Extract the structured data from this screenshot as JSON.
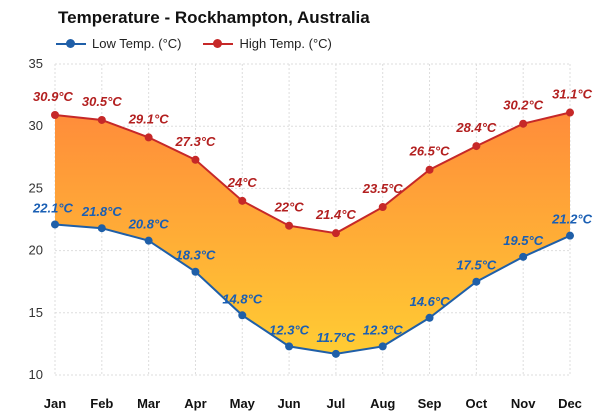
{
  "chart_data": {
    "type": "line",
    "title": "Temperature - Rockhampton, Australia",
    "categories": [
      "Jan",
      "Feb",
      "Mar",
      "Apr",
      "May",
      "Jun",
      "Jul",
      "Aug",
      "Sep",
      "Oct",
      "Nov",
      "Dec"
    ],
    "series": [
      {
        "name": "Low Temp. (°C)",
        "color": "#1f5fa8",
        "values": [
          22.1,
          21.8,
          20.8,
          18.3,
          14.8,
          12.3,
          11.7,
          12.3,
          14.6,
          17.5,
          19.5,
          21.2
        ],
        "labels": [
          "22.1°C",
          "21.8°C",
          "20.8°C",
          "18.3°C",
          "14.8°C",
          "12.3°C",
          "11.7°C",
          "12.3°C",
          "14.6°C",
          "17.5°C",
          "19.5°C",
          "21.2°C"
        ]
      },
      {
        "name": "High Temp. (°C)",
        "color": "#c62828",
        "values": [
          30.9,
          30.5,
          29.1,
          27.3,
          24,
          22,
          21.4,
          23.5,
          26.5,
          28.4,
          30.2,
          31.1
        ],
        "labels": [
          "30.9°C",
          "30.5°C",
          "29.1°C",
          "27.3°C",
          "24°C",
          "22°C",
          "21.4°C",
          "23.5°C",
          "26.5°C",
          "28.4°C",
          "30.2°C",
          "31.1°C"
        ]
      }
    ],
    "ylim": [
      10,
      35
    ],
    "yticks": [
      10,
      15,
      20,
      25,
      30,
      35
    ],
    "grid": true,
    "legend": "top-left",
    "fill_between": {
      "cool": "#ffcc33",
      "warm": "#ff8c3a"
    }
  }
}
